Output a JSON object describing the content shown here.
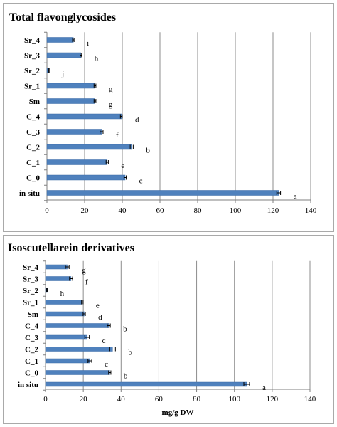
{
  "chart_data": [
    {
      "type": "bar",
      "orientation": "horizontal",
      "title": "Total flavonglycosides",
      "xlabel": "",
      "categories": [
        "Sr_4",
        "Sr_3",
        "Sr_2",
        "Sr_1",
        "Sm",
        "C_4",
        "C_3",
        "C_2",
        "C_1",
        "C_0",
        "in situ"
      ],
      "values": [
        14,
        18,
        1,
        25.5,
        25.5,
        39.5,
        29,
        45,
        32,
        41.5,
        123
      ],
      "errors": [
        0.4,
        0.4,
        0.2,
        0.5,
        0.5,
        0.5,
        0.8,
        0.8,
        0.6,
        0.6,
        1.0
      ],
      "significance": [
        "i",
        "h",
        "j",
        "g",
        "g",
        "d",
        "f",
        "b",
        "e",
        "c",
        "a"
      ],
      "xlim": [
        0,
        140
      ],
      "xticks": [
        0,
        20,
        40,
        60,
        80,
        100,
        120,
        140
      ],
      "grid": "vertical",
      "legend": "none",
      "bar_color": "#4f81bd"
    },
    {
      "type": "bar",
      "orientation": "horizontal",
      "title": "Isoscutellarein derivatives",
      "xlabel": "mg/g DW",
      "categories": [
        "Sr_4",
        "Sr_3",
        "Sr_2",
        "Sr_1",
        "Sm",
        "C_4",
        "C_3",
        "C_2",
        "C_1",
        "C_0",
        "in situ"
      ],
      "values": [
        11.5,
        13.5,
        0.8,
        19.5,
        20.5,
        33.5,
        22,
        35.5,
        23.5,
        34,
        106.5
      ],
      "errors": [
        1.0,
        0.8,
        0.2,
        0.4,
        0.6,
        0.8,
        1.2,
        1.5,
        1.0,
        0.6,
        1.5
      ],
      "significance": [
        "g",
        "f",
        "h",
        "e",
        "d",
        "b",
        "c",
        "b",
        "c",
        "b",
        "a"
      ],
      "xlim": [
        0,
        140
      ],
      "xticks": [
        0,
        20,
        40,
        60,
        80,
        100,
        120,
        140
      ],
      "grid": "vertical",
      "legend": "none",
      "bar_color": "#4f81bd"
    }
  ]
}
